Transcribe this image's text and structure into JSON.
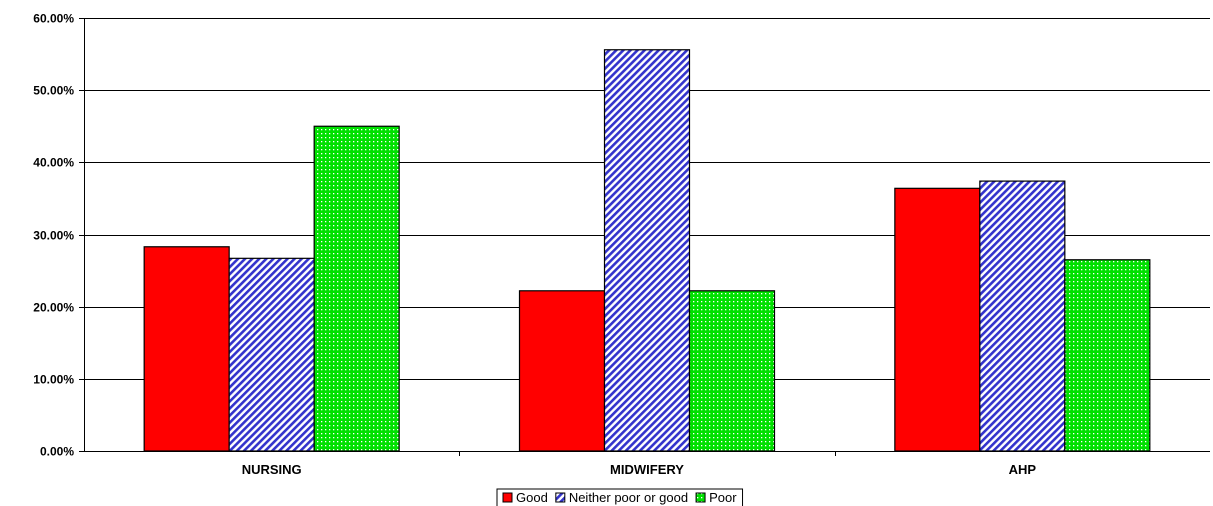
{
  "chart_data": {
    "type": "bar",
    "categories": [
      "NURSING",
      "MIDWIFERY",
      "AHP"
    ],
    "series": [
      {
        "name": "Good",
        "values": [
          0.283,
          0.222,
          0.364
        ],
        "color": "#ff0000",
        "pattern": "solid"
      },
      {
        "name": "Neither poor or good",
        "values": [
          0.267,
          0.556,
          0.374
        ],
        "color": "#3333cc",
        "pattern": "diagonal-stripes"
      },
      {
        "name": "Poor",
        "values": [
          0.45,
          0.222,
          0.265
        ],
        "color": "#00e000",
        "pattern": "dots"
      }
    ],
    "ylim": [
      0,
      0.6
    ],
    "yticks": [
      "0.00%",
      "10.00%",
      "20.00%",
      "30.00%",
      "40.00%",
      "50.00%",
      "60.00%"
    ],
    "grid": true,
    "legend_position": "bottom"
  }
}
